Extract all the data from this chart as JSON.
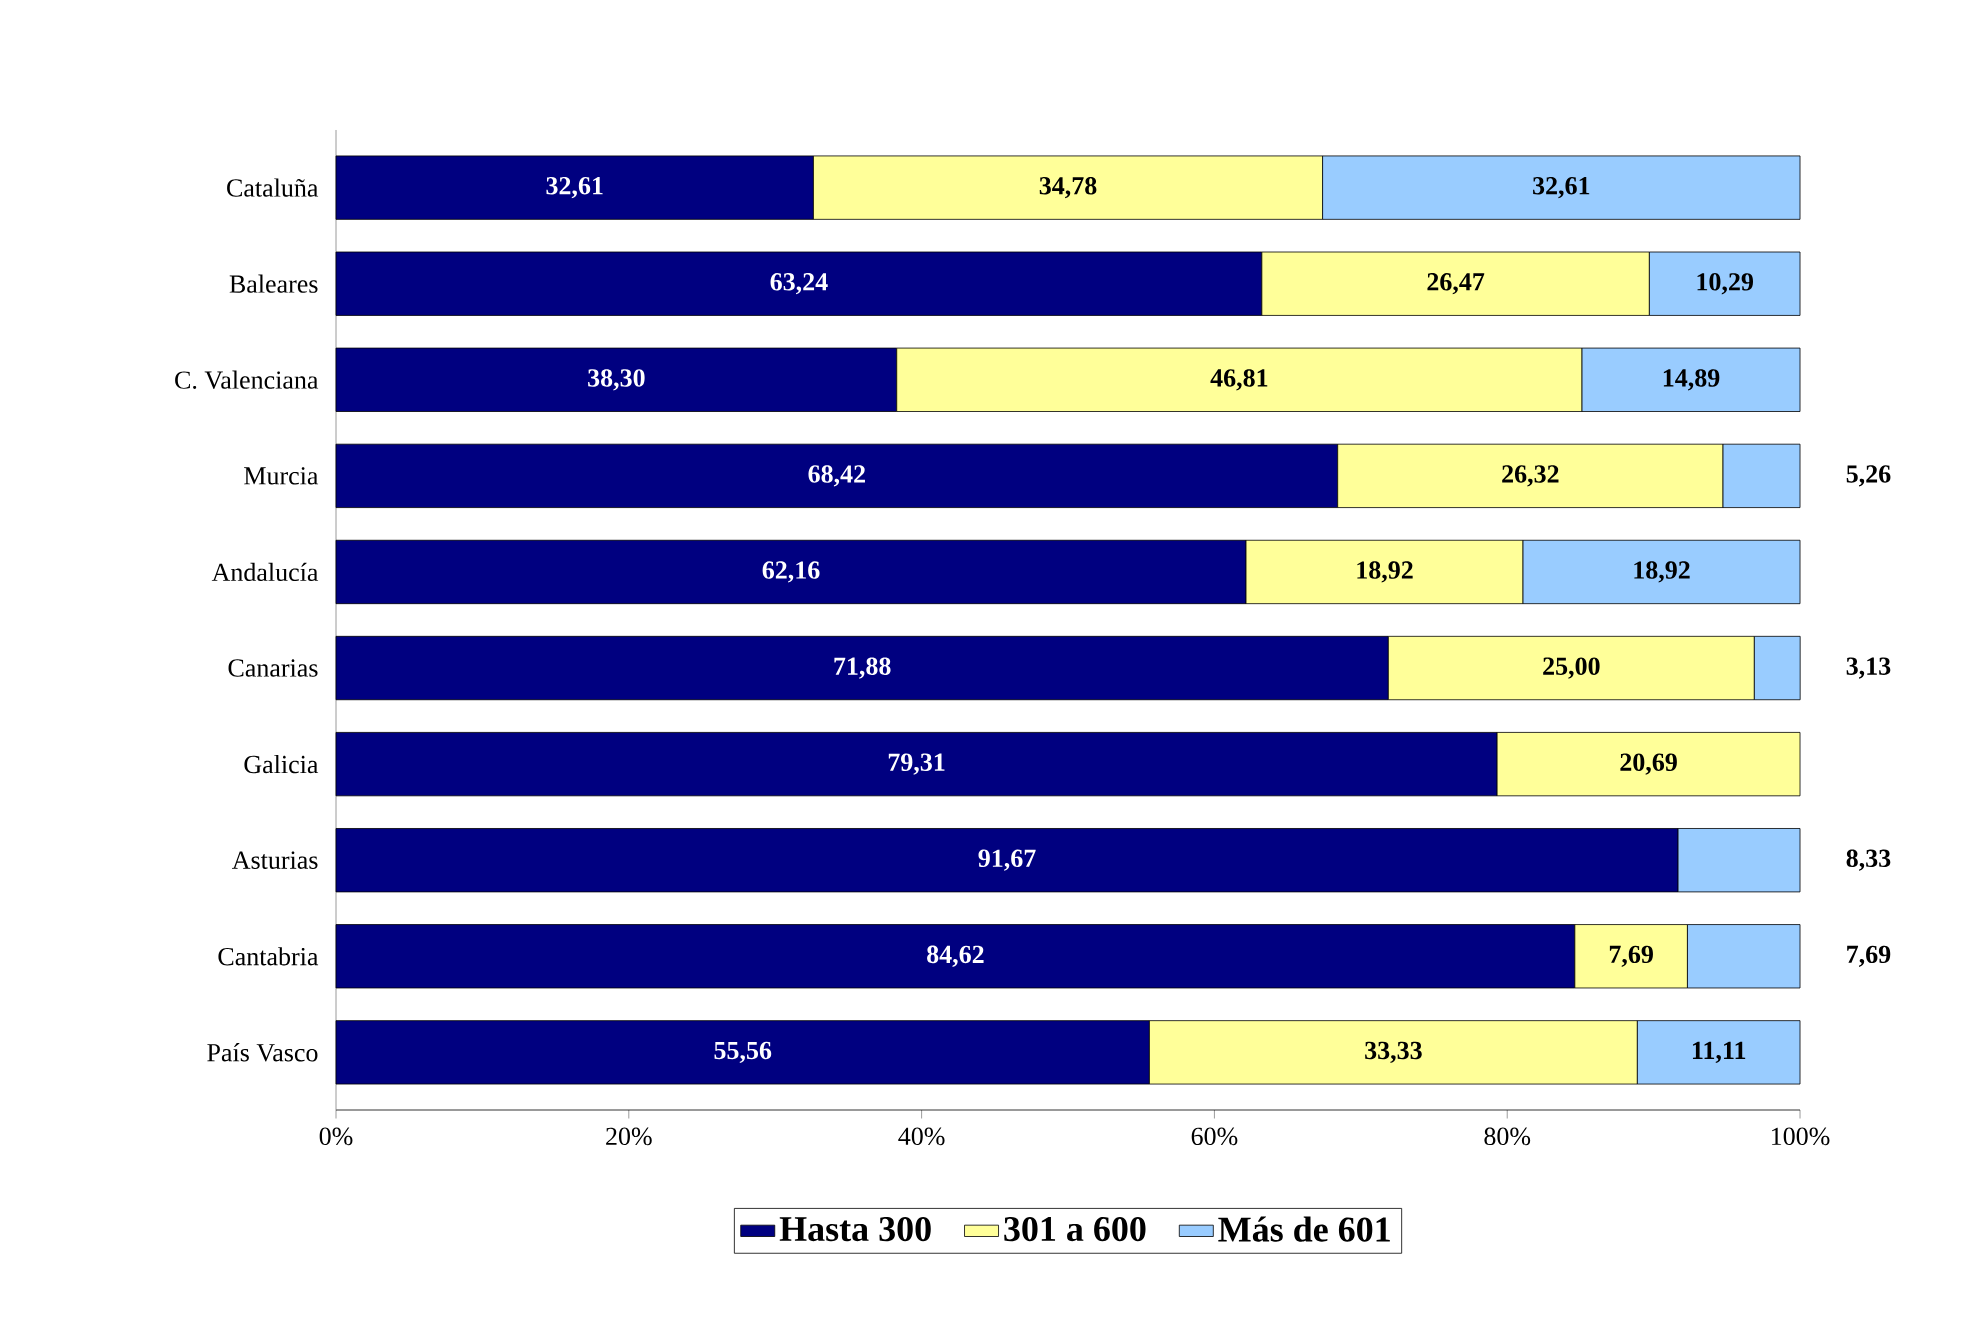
{
  "chart_data": {
    "type": "bar",
    "orientation": "horizontal",
    "stacked": true,
    "categories": [
      "Cataluña",
      "Baleares",
      "C. Valenciana",
      "Murcia",
      "Andalucía",
      "Canarias",
      "Galicia",
      "Asturias",
      "Cantabria",
      "País Vasco"
    ],
    "series": [
      {
        "name": "Hasta 300",
        "color": "#000080",
        "values": [
          32.61,
          63.24,
          38.3,
          68.42,
          62.16,
          71.88,
          79.31,
          91.67,
          84.62,
          55.56
        ],
        "value_labels": [
          "32,61",
          "63,24",
          "38,30",
          "68,42",
          "62,16",
          "71,88",
          "79,31",
          "91,67",
          "84,62",
          "55,56"
        ]
      },
      {
        "name": "301 a 600",
        "color": "#ffff99",
        "values": [
          34.78,
          26.47,
          46.81,
          26.32,
          18.92,
          25.0,
          20.69,
          null,
          7.69,
          33.33
        ],
        "value_labels": [
          "34,78",
          "26,47",
          "46,81",
          "26,32",
          "18,92",
          "25,00",
          "20,69",
          null,
          "7,69",
          "33,33"
        ]
      },
      {
        "name": "Más de 601",
        "color": "#99ccff",
        "values": [
          32.61,
          10.29,
          14.89,
          5.26,
          18.92,
          3.13,
          null,
          8.33,
          7.69,
          11.11
        ],
        "value_labels": [
          "32,61",
          "10,29",
          "14,89",
          "5,26",
          "18,92",
          "3,13",
          null,
          "8,33",
          "7,69",
          "11,11"
        ]
      }
    ],
    "xlim": [
      0,
      100
    ],
    "xticks": [
      {
        "value": 0,
        "label": "0%"
      },
      {
        "value": 20,
        "label": "20%"
      },
      {
        "value": 40,
        "label": "40%"
      },
      {
        "value": 60,
        "label": "60%"
      },
      {
        "value": 80,
        "label": "80%"
      },
      {
        "value": 100,
        "label": "100%"
      }
    ],
    "grid": false,
    "legend": "bottom"
  }
}
